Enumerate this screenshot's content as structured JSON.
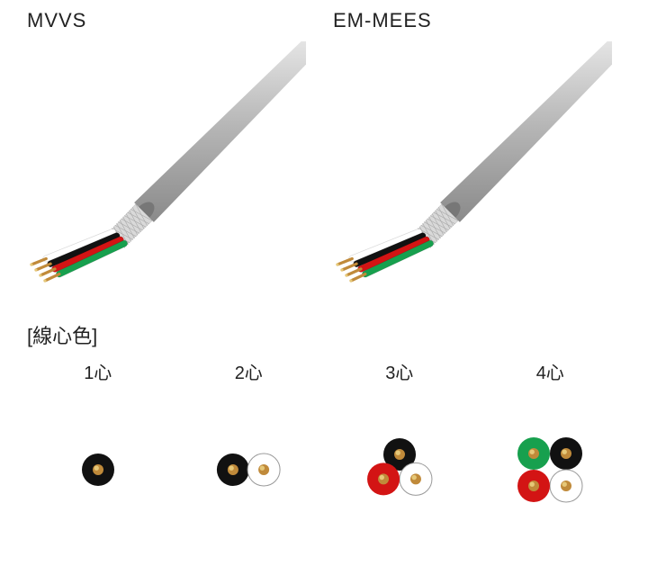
{
  "cables": [
    {
      "name": "MVVS",
      "sheath": "#b5b5b5",
      "shield": "#d9d9d9",
      "conductors": [
        {
          "insul": "#ffffff",
          "cu": "#c08a3a"
        },
        {
          "insul": "#111111",
          "cu": "#c08a3a"
        },
        {
          "insul": "#d31414",
          "cu": "#c08a3a"
        },
        {
          "insul": "#17a04e",
          "cu": "#c08a3a"
        }
      ]
    },
    {
      "name": "EM-MEES",
      "sheath": "#b5b5b5",
      "shield": "#d9d9d9",
      "conductors": [
        {
          "insul": "#ffffff",
          "cu": "#c08a3a"
        },
        {
          "insul": "#111111",
          "cu": "#c08a3a"
        },
        {
          "insul": "#d31414",
          "cu": "#c08a3a"
        },
        {
          "insul": "#17a04e",
          "cu": "#c08a3a"
        }
      ]
    }
  ],
  "coreSection": {
    "label": "[線心色]",
    "groups": [
      {
        "label": "1心",
        "wires": [
          {
            "insul": "#111111",
            "cu": "#c08a3a"
          }
        ]
      },
      {
        "label": "2心",
        "wires": [
          {
            "insul": "#111111",
            "cu": "#c08a3a"
          },
          {
            "insul": "#ffffff",
            "cu": "#c08a3a"
          }
        ]
      },
      {
        "label": "3心",
        "wires": [
          {
            "insul": "#111111",
            "cu": "#c08a3a"
          },
          {
            "insul": "#ffffff",
            "cu": "#c08a3a"
          },
          {
            "insul": "#d31414",
            "cu": "#c08a3a"
          }
        ]
      },
      {
        "label": "4心",
        "wires": [
          {
            "insul": "#111111",
            "cu": "#c08a3a"
          },
          {
            "insul": "#ffffff",
            "cu": "#c08a3a"
          },
          {
            "insul": "#d31414",
            "cu": "#c08a3a"
          },
          {
            "insul": "#17a04e",
            "cu": "#c08a3a"
          }
        ]
      }
    ]
  },
  "style": {
    "background": "#ffffff",
    "titleFontSize": 22,
    "labelFontSize": 20,
    "wireOuterR": 18,
    "wireInnerR": 6,
    "cableOuterWidth": 28,
    "shieldLen": 40,
    "conductorLen": 170
  }
}
